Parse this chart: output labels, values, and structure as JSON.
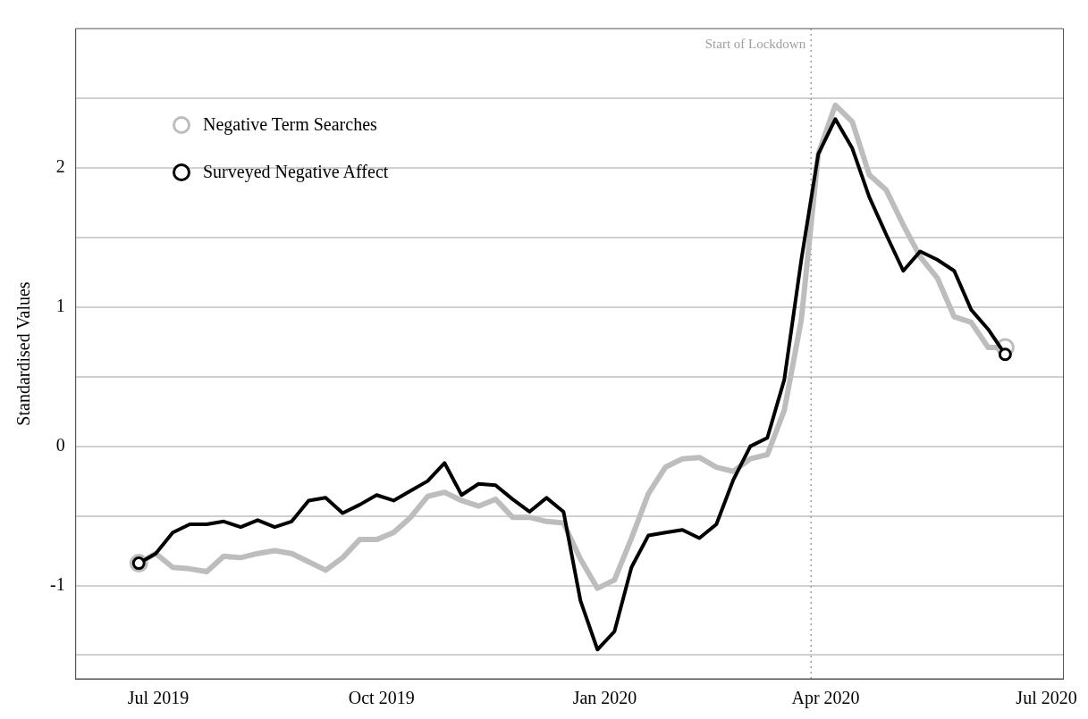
{
  "chart_data": {
    "type": "line",
    "ylabel": "Standardised Values",
    "x": [
      "2019-06-23",
      "2019-06-30",
      "2019-07-07",
      "2019-07-14",
      "2019-07-21",
      "2019-07-28",
      "2019-08-04",
      "2019-08-11",
      "2019-08-18",
      "2019-08-25",
      "2019-09-01",
      "2019-09-08",
      "2019-09-15",
      "2019-09-22",
      "2019-09-29",
      "2019-10-06",
      "2019-10-13",
      "2019-10-20",
      "2019-10-27",
      "2019-11-03",
      "2019-11-10",
      "2019-11-17",
      "2019-11-24",
      "2019-12-01",
      "2019-12-08",
      "2019-12-15",
      "2019-12-22",
      "2019-12-29",
      "2020-01-05",
      "2020-01-12",
      "2020-01-19",
      "2020-01-26",
      "2020-02-02",
      "2020-02-09",
      "2020-02-16",
      "2020-02-23",
      "2020-03-01",
      "2020-03-08",
      "2020-03-15",
      "2020-03-22",
      "2020-03-29",
      "2020-04-05",
      "2020-04-12",
      "2020-04-19",
      "2020-04-26",
      "2020-05-03",
      "2020-05-10",
      "2020-05-17",
      "2020-05-24",
      "2020-05-31",
      "2020-06-07",
      "2020-06-14"
    ],
    "series": [
      {
        "name": "Negative Term Searches",
        "color": "#bdbdbd",
        "values": [
          -0.84,
          -0.77,
          -0.87,
          -0.88,
          -0.9,
          -0.79,
          -0.8,
          -0.77,
          -0.75,
          -0.77,
          -0.83,
          -0.89,
          -0.8,
          -0.67,
          -0.67,
          -0.62,
          -0.51,
          -0.36,
          -0.33,
          -0.39,
          -0.43,
          -0.38,
          -0.51,
          -0.51,
          -0.54,
          -0.55,
          -0.81,
          -1.02,
          -0.96,
          -0.66,
          -0.34,
          -0.15,
          -0.09,
          -0.08,
          -0.15,
          -0.18,
          -0.09,
          -0.06,
          0.26,
          0.91,
          2.1,
          2.45,
          2.33,
          1.95,
          1.84,
          1.59,
          1.36,
          1.21,
          0.93,
          0.89,
          0.71,
          0.71
        ]
      },
      {
        "name": "Surveyed Negative Affect",
        "color": "#000000",
        "values": [
          -0.84,
          -0.77,
          -0.62,
          -0.56,
          -0.56,
          -0.54,
          -0.58,
          -0.53,
          -0.58,
          -0.54,
          -0.39,
          -0.37,
          -0.48,
          -0.42,
          -0.35,
          -0.39,
          -0.32,
          -0.25,
          -0.12,
          -0.35,
          -0.27,
          -0.28,
          -0.38,
          -0.47,
          -0.37,
          -0.47,
          -1.11,
          -1.46,
          -1.33,
          -0.87,
          -0.64,
          -0.62,
          -0.6,
          -0.66,
          -0.56,
          -0.24,
          0.0,
          0.06,
          0.48,
          1.34,
          2.1,
          2.35,
          2.14,
          1.79,
          1.52,
          1.26,
          1.4,
          1.34,
          1.26,
          0.98,
          0.84,
          0.66
        ]
      }
    ],
    "xlim": [
      "2019-05-28",
      "2020-07-08"
    ],
    "xticks": [
      {
        "value": "2019-07-01",
        "label": "Jul 2019"
      },
      {
        "value": "2019-10-01",
        "label": "Oct 2019"
      },
      {
        "value": "2020-01-01",
        "label": "Jan 2020"
      },
      {
        "value": "2020-04-01",
        "label": "Apr 2020"
      },
      {
        "value": "2020-07-01",
        "label": "Jul 2020"
      }
    ],
    "ylim": [
      -1.67,
      3.0
    ],
    "yticks": [
      {
        "value": -1.5,
        "label": null
      },
      -1,
      {
        "value": -0.5,
        "label": null
      },
      0,
      {
        "value": 0.5,
        "label": null
      },
      1,
      {
        "value": 1.5,
        "label": null
      },
      2,
      {
        "value": 2.5,
        "label": null
      }
    ],
    "ref_lines": [
      {
        "axis": "x",
        "value": "2020-03-26",
        "label": "Start of Lockdown",
        "color": "#9e9e9e",
        "line_style": "dotted"
      }
    ],
    "grid": "y",
    "legend": "top left",
    "line_style": "solid"
  }
}
